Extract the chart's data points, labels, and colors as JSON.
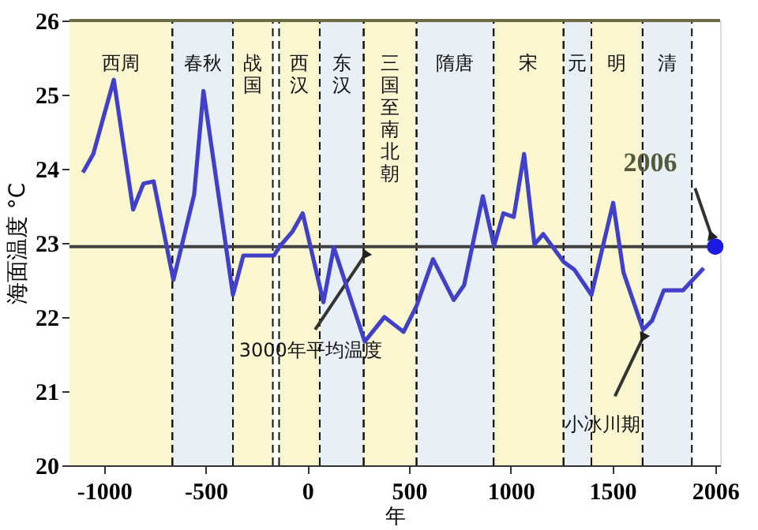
{
  "chart_data": {
    "type": "line",
    "xlabel": "年",
    "ylabel": "海面温度 °C",
    "xlim": [
      -1170,
      2030
    ],
    "ylim": [
      20,
      26
    ],
    "xticks": [
      -1000,
      -500,
      0,
      500,
      1000,
      1500,
      2006
    ],
    "yticks": [
      20,
      21,
      22,
      23,
      24,
      25,
      26
    ],
    "grid": false,
    "marker": "none",
    "line_style": "solid",
    "series": [
      {
        "color": "#4040c8",
        "x": [
          -1104,
          -1053,
          -952,
          -857,
          -806,
          -756,
          -659,
          -557,
          -511,
          -366,
          -315,
          -164,
          -137,
          -74,
          -23,
          79,
          130,
          282,
          379,
          473,
          537,
          618,
          720,
          771,
          863,
          918,
          964,
          1015,
          1066,
          1117,
          1160,
          1262,
          1313,
          1397,
          1504,
          1555,
          1651,
          1695,
          1753,
          1847,
          1949
        ],
        "values": [
          23.95,
          24.2,
          25.2,
          23.45,
          23.8,
          23.83,
          22.5,
          23.65,
          25.05,
          22.3,
          22.83,
          22.83,
          22.95,
          23.15,
          23.4,
          22.2,
          22.94,
          21.67,
          22.0,
          21.8,
          22.15,
          22.78,
          22.23,
          22.43,
          23.63,
          22.96,
          23.4,
          23.35,
          24.2,
          22.98,
          23.12,
          22.74,
          22.64,
          22.3,
          23.54,
          22.6,
          21.83,
          21.95,
          22.36,
          22.36,
          22.66
        ]
      },
      {
        "type": "scatter",
        "marker": "circle",
        "color": "#1a1ae0",
        "x": [
          2006
        ],
        "values": [
          22.95
        ]
      }
    ],
    "ref_lines": [
      {
        "axis": "y",
        "value": 22.95,
        "color": "#404040",
        "line_style": "solid"
      }
    ],
    "bands": [
      {
        "axis": "x",
        "from": -1170,
        "to": -664,
        "label": "西周",
        "color": "#faf6cf"
      },
      {
        "axis": "x",
        "from": -664,
        "to": -366,
        "label": "春秋",
        "color": "#e8eff5"
      },
      {
        "axis": "x",
        "from": -366,
        "to": -170,
        "label": "战国",
        "color": "#faf6cf"
      },
      {
        "axis": "x",
        "from": -139,
        "to": 61,
        "label": "西汉",
        "color": "#faf6cf"
      },
      {
        "axis": "x",
        "from": 61,
        "to": 277,
        "label": "东汉",
        "color": "#e8eff5"
      },
      {
        "axis": "x",
        "from": 277,
        "to": 537,
        "label": "三国至南北朝",
        "color": "#faf6cf"
      },
      {
        "axis": "x",
        "from": 537,
        "to": 916,
        "label": "隋唐",
        "color": "#e8eff5"
      },
      {
        "axis": "x",
        "from": 916,
        "to": 1260,
        "label": "宋",
        "color": "#faf6cf"
      },
      {
        "axis": "x",
        "from": 1260,
        "to": 1397,
        "label": "元",
        "color": "#e8eff5"
      },
      {
        "axis": "x",
        "from": 1397,
        "to": 1649,
        "label": "明",
        "color": "#faf6cf"
      },
      {
        "axis": "x",
        "from": 1649,
        "to": 1891,
        "label": "清",
        "color": "#e8eff5"
      }
    ],
    "annotations": [
      {
        "text": "3000年平均温度",
        "x": 282,
        "y": 22.83
      },
      {
        "text": "小冰川期",
        "x": 1650,
        "y": 21.72
      },
      {
        "text": "2006",
        "x": 2006,
        "y": 22.95
      }
    ]
  }
}
